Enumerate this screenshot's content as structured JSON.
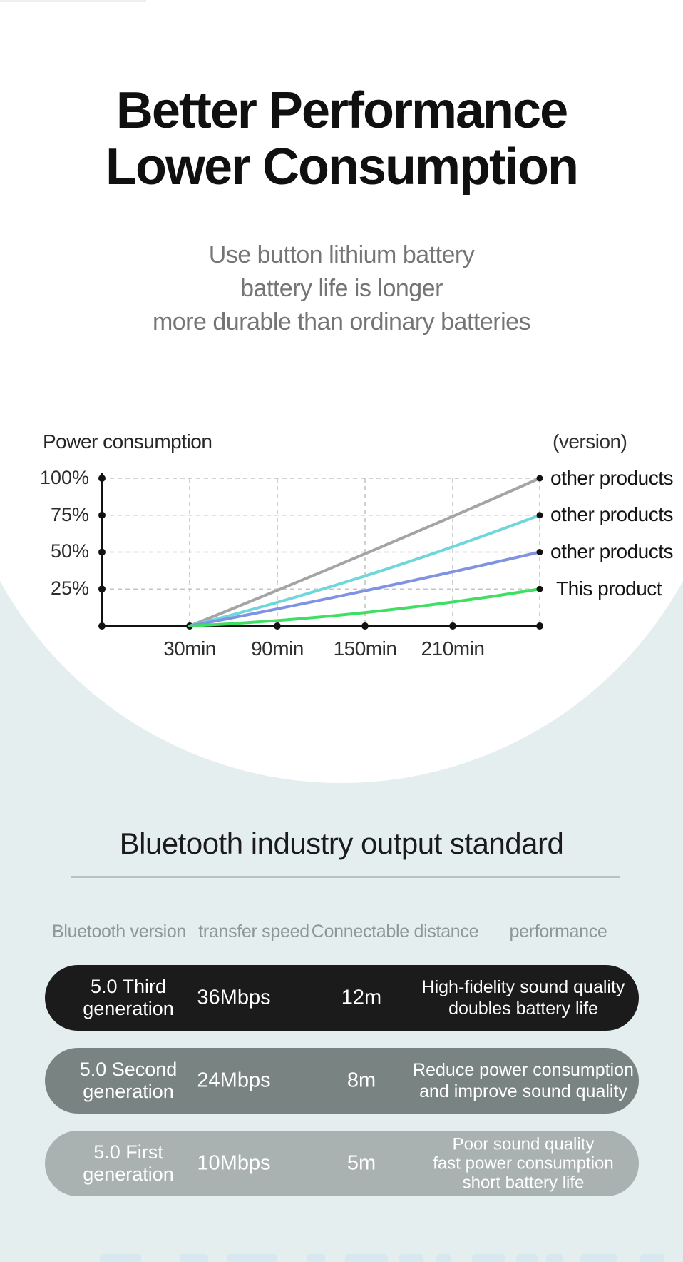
{
  "hero": {
    "title_line1": "Better Performance",
    "title_line2": "Lower Consumption",
    "subtitle_lines": [
      "Use button lithium battery",
      "battery life is longer",
      "more durable than ordinary batteries"
    ]
  },
  "chart_data": {
    "type": "line",
    "title": "Power consumption",
    "legend_title": "(version)",
    "x_tick_labels": [
      "30min",
      "90min",
      "150min",
      "210min"
    ],
    "y_tick_labels": [
      "100%",
      "75%",
      "50%",
      "25%"
    ],
    "ylim": [
      0,
      100
    ],
    "x_range_min": [
      30,
      270
    ],
    "grid": true,
    "legend_position": "right",
    "series": [
      {
        "name": "other products",
        "color": "#a4a4a4",
        "points": [
          [
            30,
            0
          ],
          [
            270,
            100
          ]
        ],
        "curve": 0.05
      },
      {
        "name": "other products",
        "color": "#6fd6dc",
        "points": [
          [
            30,
            0
          ],
          [
            270,
            75
          ]
        ],
        "curve": 0.2
      },
      {
        "name": "other products",
        "color": "#8093e2",
        "points": [
          [
            30,
            0
          ],
          [
            270,
            50
          ]
        ],
        "curve": 0.1
      },
      {
        "name": "This product",
        "color": "#3fdf63",
        "points": [
          [
            30,
            0
          ],
          [
            270,
            25
          ]
        ],
        "curve": 0.55
      }
    ]
  },
  "standards": {
    "heading": "Bluetooth industry output standard",
    "columns": [
      "Bluetooth version",
      "transfer speed",
      "Connectable distance",
      "performance"
    ],
    "rows": [
      {
        "bg": "#1b1b1b",
        "generation": [
          "5.0 Third",
          "generation"
        ],
        "speed": "36Mbps",
        "distance": "12m",
        "performance": [
          "High-fidelity sound quality",
          "doubles battery life"
        ]
      },
      {
        "bg": "#798382",
        "generation": [
          "5.0 Second",
          "generation"
        ],
        "speed": "24Mbps",
        "distance": "8m",
        "performance": [
          "Reduce power consumption",
          "and improve sound quality"
        ]
      },
      {
        "bg": "#a9b2b1",
        "generation": [
          "5.0 First",
          "generation"
        ],
        "speed": "10Mbps",
        "distance": "5m",
        "performance": [
          "Poor sound quality",
          "fast power consumption",
          "short battery life"
        ]
      }
    ]
  },
  "colors": {
    "page_background": "#ffffff",
    "lower_background": "#e4eeef",
    "title_text": "#101010",
    "subtitle_text": "#757575",
    "axis": "#121212",
    "gridline": "#c3c6c6",
    "legend_text": "#141414",
    "table_header_text": "#8d9797",
    "row_text": "#ffffff"
  }
}
